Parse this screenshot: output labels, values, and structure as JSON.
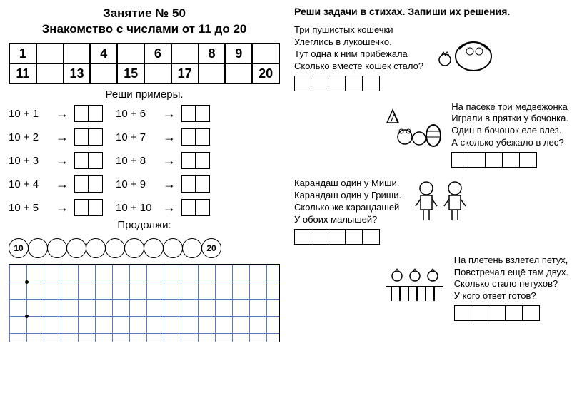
{
  "header": {
    "line1": "Занятие № 50",
    "line2": "Знакомство с числами от 11 до 20"
  },
  "num_table": {
    "row1": [
      "1",
      "",
      "",
      "4",
      "",
      "6",
      "",
      "8",
      "9",
      ""
    ],
    "row2": [
      "11",
      "",
      "13",
      "",
      "15",
      "",
      "17",
      "",
      "",
      "20"
    ]
  },
  "examples": {
    "title": "Реши примеры.",
    "col1": [
      "10 + 1",
      "10 + 2",
      "10 + 3",
      "10 + 4",
      "10 + 5"
    ],
    "col2": [
      "10 + 6",
      "10 + 7",
      "10 + 8",
      "10 + 9",
      "10 + 10"
    ]
  },
  "continue": {
    "title": "Продолжи:",
    "start": "10",
    "end": "20",
    "count": 11
  },
  "right_title": "Реши задачи в стихах. Запиши их решения.",
  "poems": [
    {
      "lines": [
        "Три пушистых кошечки",
        "Улеглись в лукошечко.",
        "Тут одна к ним прибежала",
        "Сколько вместе кошек стало?"
      ],
      "img": "cats",
      "side": "right"
    },
    {
      "lines": [
        "На пасеке три медвежонка",
        "Играли в прятки у бочонка.",
        "Один в бочонок еле влез.",
        "А сколько убежало в лес?"
      ],
      "img": "bears",
      "side": "left"
    },
    {
      "lines": [
        "Карандаш один у Миши.",
        "Карандаш один у Гриши.",
        "Сколько же карандашей",
        "У обоих малышей?"
      ],
      "img": "boys",
      "side": "right"
    },
    {
      "lines": [
        "На плетень взлетел петух,",
        "Повстречал ещё там двух.",
        "Сколько стало петухов?",
        "У кого ответ готов?"
      ],
      "img": "roosters",
      "side": "left"
    }
  ]
}
